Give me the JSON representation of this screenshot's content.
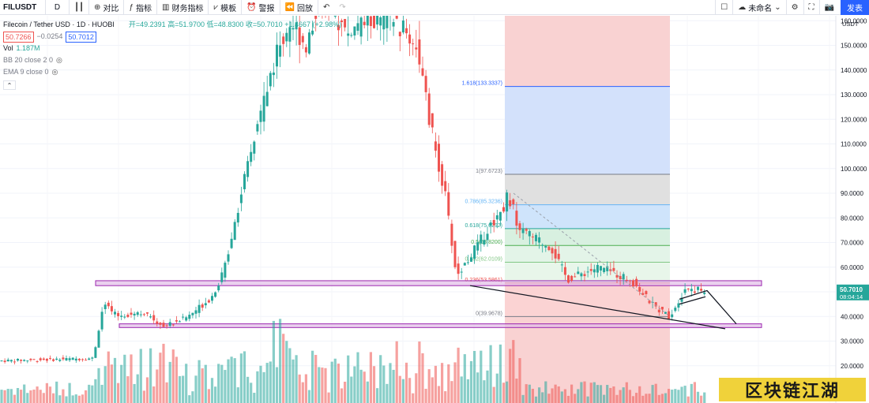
{
  "toolbar": {
    "symbol": "FILUSDT",
    "interval": "D",
    "compare": "对比",
    "indicators": "指标",
    "financials": "财务指标",
    "templates": "模板",
    "alert": "警报",
    "replay": "回放",
    "layout_name": "未命名",
    "publish": "发表"
  },
  "legend": {
    "title": "Filecoin / Tether USD · 1D · HUOBI",
    "open_label": "开",
    "open": "=49.2391",
    "high_label": "高",
    "high": "=51.9700",
    "low_label": "低",
    "low": "=48.8300",
    "close_label": "收",
    "close": "=50.7010",
    "change": "+1.4667 (+2.98%)",
    "bid": "50.7266",
    "spread": "−0.0254",
    "ask": "50.7012",
    "vol_label": "Vol",
    "vol_value": "1.187M",
    "bb": "BB 20 close 2 0",
    "ema": "EMA 9 close 0"
  },
  "price_axis": {
    "currency": "USDT",
    "ticks": [
      "160.0000",
      "150.0000",
      "140.0000",
      "130.0000",
      "120.0000",
      "110.0000",
      "100.0000",
      "90.0000",
      "80.0000",
      "70.0000",
      "60.0000",
      "50.0000",
      "40.0000",
      "30.0000",
      "20.0000"
    ],
    "last_price": "50.7010",
    "countdown": "08:04:14",
    "last_color": "#26a69a"
  },
  "watermark": "区块链江湖",
  "colors": {
    "up": "#26a69a",
    "down": "#ef5350",
    "fib_line": "#2962ff",
    "zone": "#9c27b0"
  },
  "chart_data": {
    "type": "candlestick",
    "exchange": "HUOBI",
    "pair": "FILUSDT",
    "interval": "1D",
    "ylim": [
      20,
      170
    ],
    "anchor_prices": {
      "pre_rally_base": 22,
      "first_spike_high": 52,
      "consolidation": 42,
      "peak_zone": 160,
      "breakdown_low": 55,
      "fib_high": 97.6723,
      "fib_low": 39.9678,
      "current_close": 50.701
    },
    "fibonacci": [
      {
        "level": "1",
        "price": "97.6723"
      },
      {
        "level": "0.786",
        "price": "85.3236"
      },
      {
        "level": "0.618",
        "price": "75.6292"
      },
      {
        "level": "0.5",
        "price": "68.8200"
      },
      {
        "level": "0.382",
        "price": "62.0109"
      },
      {
        "level": "0.236",
        "price": "53.5861"
      },
      {
        "level": "0",
        "price": "39.9678"
      },
      {
        "level": "1.618",
        "price": "133.3337"
      }
    ],
    "zones": [
      {
        "name": "resistance",
        "from": 52.5,
        "to": 54.5
      },
      {
        "name": "support",
        "from": 35.5,
        "to": 37.0
      }
    ]
  }
}
